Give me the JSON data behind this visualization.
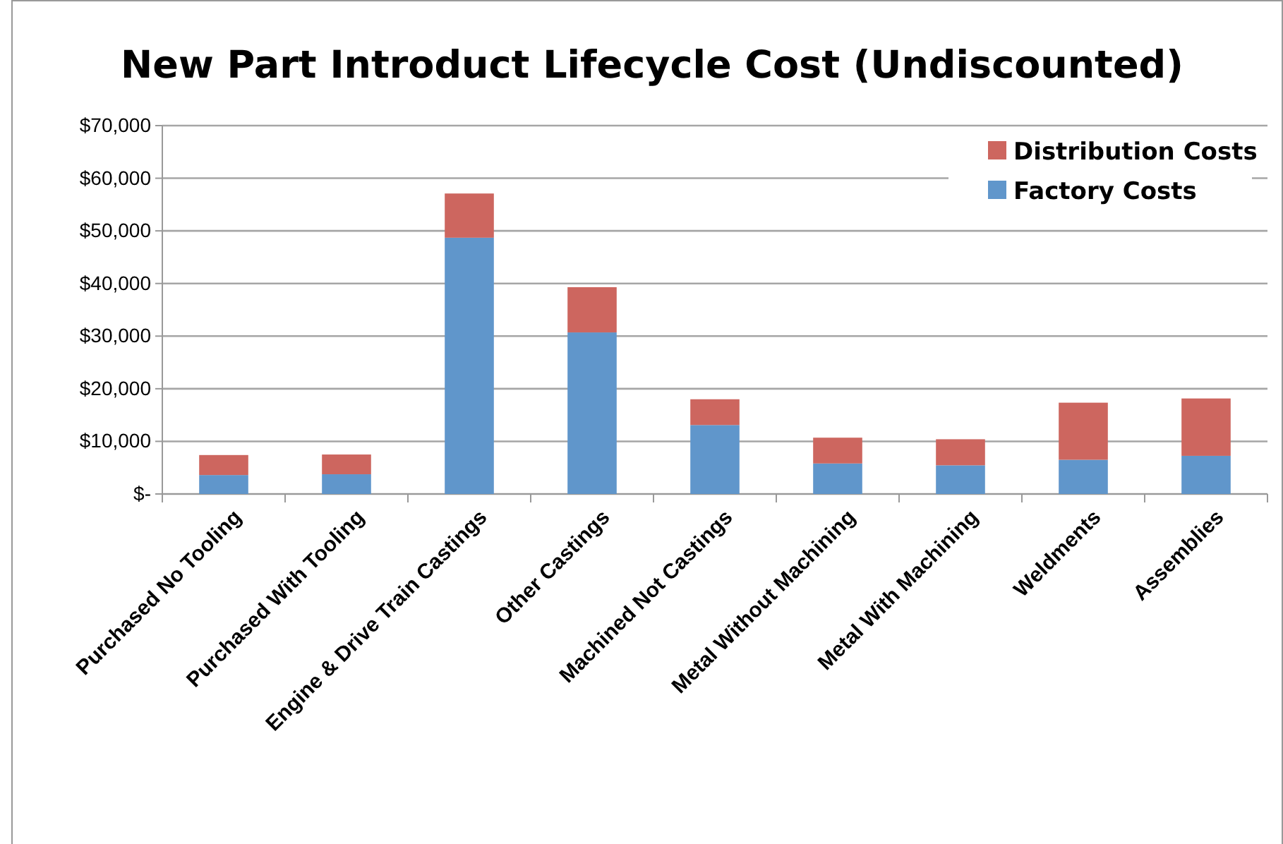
{
  "chart_data": {
    "type": "bar",
    "title": "New Part Introduct Lifecycle Cost (Undiscounted)",
    "categories": [
      "Purchased No Tooling",
      "Purchased With Tooling",
      "Engine & Drive Train Castings",
      "Other Castings",
      "Machined Not Castings",
      "Metal Without Machining",
      "Metal  With Machining",
      "Weldments",
      "Assemblies"
    ],
    "stacked": true,
    "series": [
      {
        "name": "Factory Costs",
        "color": "#6096cb",
        "values": [
          3600,
          3750,
          48700,
          30700,
          13100,
          5800,
          5450,
          6500,
          7250
        ]
      },
      {
        "name": "Distribution Costs",
        "color": "#cd665f",
        "values": [
          3800,
          3750,
          8400,
          8600,
          4900,
          4900,
          4950,
          10850,
          10900
        ]
      }
    ],
    "ylim": [
      0,
      70000
    ],
    "yticks": [
      {
        "value": 0,
        "label": "$-"
      },
      {
        "value": 10000,
        "label": "$10,000"
      },
      {
        "value": 20000,
        "label": "$20,000"
      },
      {
        "value": 30000,
        "label": "$30,000"
      },
      {
        "value": 40000,
        "label": "$40,000"
      },
      {
        "value": 50000,
        "label": "$50,000"
      },
      {
        "value": 60000,
        "label": "$60,000"
      },
      {
        "value": 70000,
        "label": "$70,000"
      }
    ],
    "grid": "y",
    "legend": "top right"
  }
}
